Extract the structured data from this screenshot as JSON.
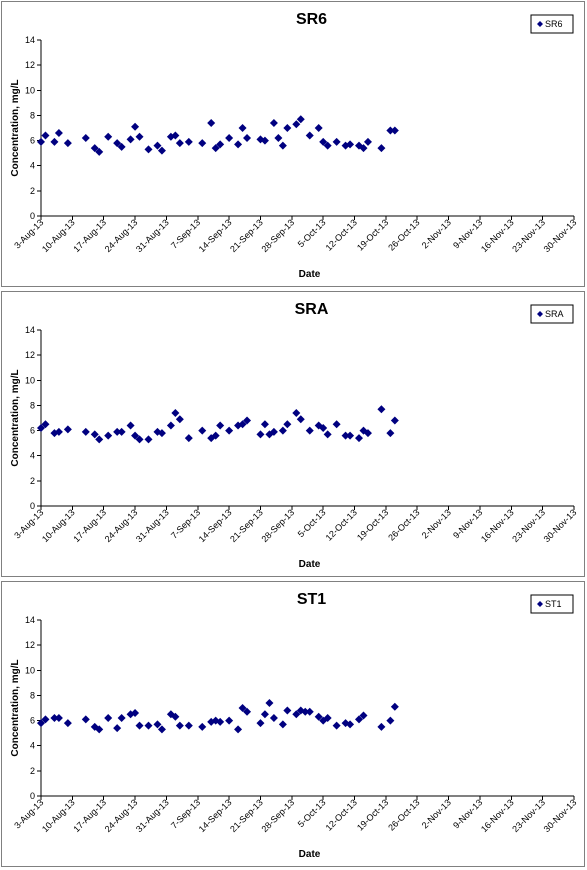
{
  "chart_data": [
    {
      "type": "scatter",
      "title": "SR6",
      "xlabel": "Date",
      "ylabel": "Concentration, mg/L",
      "ylim": [
        0,
        14
      ],
      "yticks": [
        "0",
        "2",
        "4",
        "6",
        "8",
        "10",
        "12",
        "14"
      ],
      "xlim": [
        "2013-08-03",
        "2013-11-30"
      ],
      "xticks": [
        "3-Aug-13",
        "10-Aug-13",
        "17-Aug-13",
        "24-Aug-13",
        "31-Aug-13",
        "7-Sep-13",
        "14-Sep-13",
        "21-Sep-13",
        "28-Sep-13",
        "5-Oct-13",
        "12-Oct-13",
        "19-Oct-13",
        "26-Oct-13",
        "2-Nov-13",
        "9-Nov-13",
        "16-Nov-13",
        "23-Nov-13",
        "30-Nov-13"
      ],
      "legend": "top-right",
      "grid": false,
      "series": [
        {
          "name": "SR6",
          "color": "#000080",
          "marker": "diamond",
          "points": [
            [
              "2013-08-03",
              5.9
            ],
            [
              "2013-08-04",
              6.4
            ],
            [
              "2013-08-06",
              5.9
            ],
            [
              "2013-08-07",
              6.6
            ],
            [
              "2013-08-09",
              5.8
            ],
            [
              "2013-08-13",
              6.2
            ],
            [
              "2013-08-15",
              5.4
            ],
            [
              "2013-08-16",
              5.1
            ],
            [
              "2013-08-18",
              6.3
            ],
            [
              "2013-08-20",
              5.8
            ],
            [
              "2013-08-21",
              5.5
            ],
            [
              "2013-08-23",
              6.1
            ],
            [
              "2013-08-24",
              7.1
            ],
            [
              "2013-08-25",
              6.3
            ],
            [
              "2013-08-27",
              5.3
            ],
            [
              "2013-08-29",
              5.6
            ],
            [
              "2013-08-30",
              5.2
            ],
            [
              "2013-09-01",
              6.3
            ],
            [
              "2013-09-02",
              6.4
            ],
            [
              "2013-09-03",
              5.8
            ],
            [
              "2013-09-05",
              5.9
            ],
            [
              "2013-09-08",
              5.8
            ],
            [
              "2013-09-10",
              7.4
            ],
            [
              "2013-09-11",
              5.4
            ],
            [
              "2013-09-12",
              5.7
            ],
            [
              "2013-09-14",
              6.2
            ],
            [
              "2013-09-16",
              5.7
            ],
            [
              "2013-09-17",
              7.0
            ],
            [
              "2013-09-18",
              6.2
            ],
            [
              "2013-09-21",
              6.1
            ],
            [
              "2013-09-22",
              6.0
            ],
            [
              "2013-09-24",
              7.4
            ],
            [
              "2013-09-25",
              6.2
            ],
            [
              "2013-09-26",
              5.6
            ],
            [
              "2013-09-27",
              7.0
            ],
            [
              "2013-09-29",
              7.3
            ],
            [
              "2013-09-30",
              7.7
            ],
            [
              "2013-10-02",
              6.4
            ],
            [
              "2013-10-04",
              7.0
            ],
            [
              "2013-10-05",
              5.9
            ],
            [
              "2013-10-06",
              5.6
            ],
            [
              "2013-10-08",
              5.9
            ],
            [
              "2013-10-10",
              5.6
            ],
            [
              "2013-10-11",
              5.7
            ],
            [
              "2013-10-13",
              5.6
            ],
            [
              "2013-10-14",
              5.4
            ],
            [
              "2013-10-15",
              5.9
            ],
            [
              "2013-10-18",
              5.4
            ],
            [
              "2013-10-20",
              6.8
            ],
            [
              "2013-10-21",
              6.8
            ]
          ]
        }
      ]
    },
    {
      "type": "scatter",
      "title": "SRA",
      "xlabel": "Date",
      "ylabel": "Concentration, mg/L",
      "ylim": [
        0,
        14
      ],
      "yticks": [
        "0",
        "2",
        "4",
        "6",
        "8",
        "10",
        "12",
        "14"
      ],
      "xlim": [
        "2013-08-03",
        "2013-11-30"
      ],
      "xticks": [
        "3-Aug-13",
        "10-Aug-13",
        "17-Aug-13",
        "24-Aug-13",
        "31-Aug-13",
        "7-Sep-13",
        "14-Sep-13",
        "21-Sep-13",
        "28-Sep-13",
        "5-Oct-13",
        "12-Oct-13",
        "19-Oct-13",
        "26-Oct-13",
        "2-Nov-13",
        "9-Nov-13",
        "16-Nov-13",
        "23-Nov-13",
        "30-Nov-13"
      ],
      "legend": "top-right",
      "grid": false,
      "series": [
        {
          "name": "SRA",
          "color": "#000080",
          "marker": "diamond",
          "points": [
            [
              "2013-08-03",
              6.2
            ],
            [
              "2013-08-04",
              6.5
            ],
            [
              "2013-08-06",
              5.8
            ],
            [
              "2013-08-07",
              5.9
            ],
            [
              "2013-08-09",
              6.1
            ],
            [
              "2013-08-13",
              5.9
            ],
            [
              "2013-08-15",
              5.7
            ],
            [
              "2013-08-16",
              5.3
            ],
            [
              "2013-08-18",
              5.6
            ],
            [
              "2013-08-20",
              5.9
            ],
            [
              "2013-08-21",
              5.9
            ],
            [
              "2013-08-23",
              6.4
            ],
            [
              "2013-08-24",
              5.6
            ],
            [
              "2013-08-25",
              5.3
            ],
            [
              "2013-08-27",
              5.3
            ],
            [
              "2013-08-29",
              5.9
            ],
            [
              "2013-08-30",
              5.8
            ],
            [
              "2013-09-01",
              6.4
            ],
            [
              "2013-09-02",
              7.4
            ],
            [
              "2013-09-03",
              6.9
            ],
            [
              "2013-09-05",
              5.4
            ],
            [
              "2013-09-08",
              6.0
            ],
            [
              "2013-09-10",
              5.4
            ],
            [
              "2013-09-11",
              5.6
            ],
            [
              "2013-09-12",
              6.4
            ],
            [
              "2013-09-14",
              6.0
            ],
            [
              "2013-09-16",
              6.4
            ],
            [
              "2013-09-17",
              6.5
            ],
            [
              "2013-09-18",
              6.8
            ],
            [
              "2013-09-21",
              5.7
            ],
            [
              "2013-09-22",
              6.5
            ],
            [
              "2013-09-23",
              5.7
            ],
            [
              "2013-09-24",
              5.9
            ],
            [
              "2013-09-26",
              6.0
            ],
            [
              "2013-09-27",
              6.5
            ],
            [
              "2013-09-29",
              7.4
            ],
            [
              "2013-09-30",
              6.9
            ],
            [
              "2013-10-02",
              6.0
            ],
            [
              "2013-10-04",
              6.4
            ],
            [
              "2013-10-05",
              6.2
            ],
            [
              "2013-10-06",
              5.7
            ],
            [
              "2013-10-08",
              6.5
            ],
            [
              "2013-10-10",
              5.6
            ],
            [
              "2013-10-11",
              5.6
            ],
            [
              "2013-10-13",
              5.4
            ],
            [
              "2013-10-14",
              6.0
            ],
            [
              "2013-10-15",
              5.8
            ],
            [
              "2013-10-18",
              7.7
            ],
            [
              "2013-10-20",
              5.8
            ],
            [
              "2013-10-21",
              6.8
            ]
          ]
        }
      ]
    },
    {
      "type": "scatter",
      "title": "ST1",
      "xlabel": "Date",
      "ylabel": "Concentration, mg/L",
      "ylim": [
        0,
        14
      ],
      "yticks": [
        "0",
        "2",
        "4",
        "6",
        "8",
        "10",
        "12",
        "14"
      ],
      "xlim": [
        "2013-08-03",
        "2013-11-30"
      ],
      "xticks": [
        "3-Aug-13",
        "10-Aug-13",
        "17-Aug-13",
        "24-Aug-13",
        "31-Aug-13",
        "7-Sep-13",
        "14-Sep-13",
        "21-Sep-13",
        "28-Sep-13",
        "5-Oct-13",
        "12-Oct-13",
        "19-Oct-13",
        "26-Oct-13",
        "2-Nov-13",
        "9-Nov-13",
        "16-Nov-13",
        "23-Nov-13",
        "30-Nov-13"
      ],
      "legend": "top-right",
      "grid": false,
      "series": [
        {
          "name": "ST1",
          "color": "#000080",
          "marker": "diamond",
          "points": [
            [
              "2013-08-03",
              5.8
            ],
            [
              "2013-08-04",
              6.1
            ],
            [
              "2013-08-06",
              6.2
            ],
            [
              "2013-08-07",
              6.2
            ],
            [
              "2013-08-09",
              5.8
            ],
            [
              "2013-08-13",
              6.1
            ],
            [
              "2013-08-15",
              5.5
            ],
            [
              "2013-08-16",
              5.3
            ],
            [
              "2013-08-18",
              6.2
            ],
            [
              "2013-08-20",
              5.4
            ],
            [
              "2013-08-21",
              6.2
            ],
            [
              "2013-08-23",
              6.5
            ],
            [
              "2013-08-24",
              6.6
            ],
            [
              "2013-08-25",
              5.6
            ],
            [
              "2013-08-27",
              5.6
            ],
            [
              "2013-08-29",
              5.7
            ],
            [
              "2013-08-30",
              5.3
            ],
            [
              "2013-09-01",
              6.5
            ],
            [
              "2013-09-02",
              6.3
            ],
            [
              "2013-09-03",
              5.6
            ],
            [
              "2013-09-05",
              5.6
            ],
            [
              "2013-09-08",
              5.5
            ],
            [
              "2013-09-10",
              5.9
            ],
            [
              "2013-09-11",
              6.0
            ],
            [
              "2013-09-12",
              5.9
            ],
            [
              "2013-09-14",
              6.0
            ],
            [
              "2013-09-16",
              5.3
            ],
            [
              "2013-09-17",
              7.0
            ],
            [
              "2013-09-18",
              6.7
            ],
            [
              "2013-09-21",
              5.8
            ],
            [
              "2013-09-22",
              6.5
            ],
            [
              "2013-09-23",
              7.4
            ],
            [
              "2013-09-24",
              6.2
            ],
            [
              "2013-09-26",
              5.7
            ],
            [
              "2013-09-27",
              6.8
            ],
            [
              "2013-09-29",
              6.5
            ],
            [
              "2013-09-30",
              6.8
            ],
            [
              "2013-10-01",
              6.7
            ],
            [
              "2013-10-02",
              6.7
            ],
            [
              "2013-10-04",
              6.3
            ],
            [
              "2013-10-05",
              6.0
            ],
            [
              "2013-10-06",
              6.2
            ],
            [
              "2013-10-08",
              5.6
            ],
            [
              "2013-10-10",
              5.8
            ],
            [
              "2013-10-11",
              5.7
            ],
            [
              "2013-10-13",
              6.1
            ],
            [
              "2013-10-14",
              6.4
            ],
            [
              "2013-10-18",
              5.5
            ],
            [
              "2013-10-20",
              6.0
            ],
            [
              "2013-10-21",
              7.1
            ]
          ]
        }
      ]
    }
  ]
}
